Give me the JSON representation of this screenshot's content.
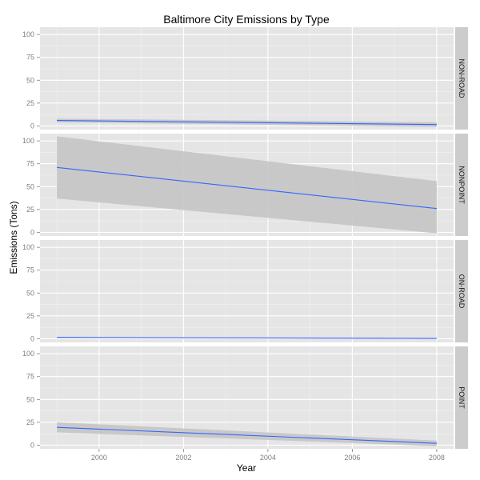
{
  "chart_data": {
    "type": "line",
    "title": "Baltimore City Emissions by Type",
    "xlabel": "Year",
    "ylabel": "Emissions (Tons)",
    "xlim": [
      1998.6,
      2008.4
    ],
    "ylim": [
      -4,
      108
    ],
    "x_ticks": [
      2000,
      2002,
      2004,
      2006,
      2008
    ],
    "x_tick_labels": [
      "2000",
      "2002",
      "2004",
      "2006",
      "2008"
    ],
    "y_ticks": [
      0,
      25,
      50,
      75,
      100
    ],
    "y_tick_labels": [
      "0",
      "25",
      "50",
      "75",
      "100"
    ],
    "grid": true,
    "legend": "none",
    "line_color": "#3366ff",
    "band_color": "#c4c4c4",
    "panel_background": "#e5e5e5",
    "strip_background": "#cccccc",
    "facets": [
      {
        "label": "NON-ROAD",
        "x": [
          1999,
          2008
        ],
        "y": [
          6,
          1.5
        ],
        "ci_lower": [
          4,
          -1
        ],
        "ci_upper": [
          8,
          4
        ]
      },
      {
        "label": "NONPOINT",
        "x": [
          1999,
          2008
        ],
        "y": [
          71,
          26
        ],
        "ci_lower": [
          37,
          -1
        ],
        "ci_upper": [
          105,
          56
        ]
      },
      {
        "label": "ON-ROAD",
        "x": [
          1999,
          2008
        ],
        "y": [
          1.5,
          0.3
        ],
        "ci_lower": [
          1,
          -0.2
        ],
        "ci_upper": [
          2,
          0.8
        ]
      },
      {
        "label": "POINT",
        "x": [
          1999,
          2008
        ],
        "y": [
          19.5,
          2
        ],
        "ci_lower": [
          14,
          -1
        ],
        "ci_upper": [
          25,
          5
        ]
      }
    ]
  }
}
